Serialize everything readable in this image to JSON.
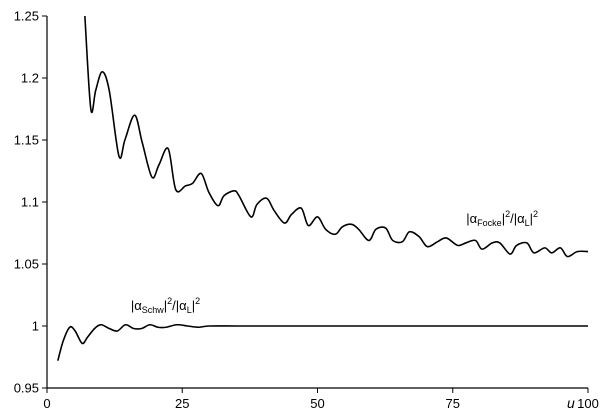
{
  "chart_data": {
    "type": "line",
    "title": "",
    "xlabel": "u",
    "ylabel": "",
    "xlim": [
      0,
      100
    ],
    "ylim": [
      0.95,
      1.25
    ],
    "grid": false,
    "x_ticks": [
      0,
      25,
      50,
      75,
      100
    ],
    "x_tick_labels": [
      "0",
      "25",
      "50",
      "75",
      "100"
    ],
    "y_ticks": [
      0.95,
      1,
      1.05,
      1.1,
      1.15,
      1.2,
      1.25
    ],
    "y_tick_labels": [
      "0.95",
      "1",
      "1.05",
      "1.1",
      "1.15",
      "1.2",
      "1.25"
    ],
    "series": [
      {
        "name": "focke",
        "x": [
          7,
          8.1,
          9,
          10.2,
          11.5,
          13.3,
          14.4,
          16.2,
          17.6,
          19.4,
          20.7,
          22.4,
          23.8,
          25.6,
          26.9,
          28.5,
          29.9,
          31.6,
          32.7,
          34.6,
          35.5,
          37.7,
          38.8,
          40.6,
          42,
          43.9,
          45.2,
          47,
          48.3,
          50,
          51.5,
          53.3,
          54.6,
          56.3,
          57.6,
          59.5,
          60.8,
          62.6,
          63.9,
          65.7,
          67,
          68.8,
          70.3,
          72.2,
          73.8,
          75.9,
          77.4,
          79.2,
          80.4,
          82.3,
          83.7,
          85.6,
          86.8,
          88.7,
          90,
          92,
          93.3,
          94.9,
          96.2,
          98,
          100
        ],
        "y": [
          1.25,
          1.175,
          1.19,
          1.205,
          1.19,
          1.137,
          1.15,
          1.17,
          1.148,
          1.12,
          1.13,
          1.143,
          1.11,
          1.113,
          1.115,
          1.123,
          1.108,
          1.097,
          1.105,
          1.109,
          1.105,
          1.088,
          1.098,
          1.103,
          1.093,
          1.083,
          1.09,
          1.095,
          1.081,
          1.088,
          1.078,
          1.074,
          1.08,
          1.082,
          1.078,
          1.069,
          1.078,
          1.079,
          1.069,
          1.068,
          1.076,
          1.072,
          1.064,
          1.068,
          1.071,
          1.065,
          1.067,
          1.069,
          1.062,
          1.067,
          1.067,
          1.058,
          1.065,
          1.067,
          1.059,
          1.063,
          1.059,
          1.063,
          1.056,
          1.06,
          1.06
        ]
      },
      {
        "name": "schw",
        "x": [
          2,
          3,
          4.2,
          5.2,
          6.5,
          7.5,
          8.8,
          10,
          11.5,
          13,
          14.5,
          16,
          17.5,
          19,
          20.5,
          22,
          24,
          26,
          28,
          30,
          35,
          40,
          50,
          60,
          70,
          80,
          90,
          100
        ],
        "y": [
          0.972,
          0.988,
          0.999,
          0.996,
          0.986,
          0.991,
          0.998,
          1.001,
          0.998,
          0.996,
          1.001,
          0.998,
          0.998,
          1.001,
          0.999,
          0.999,
          1.001,
          1.0,
          0.999,
          1.0,
          1.0,
          1.0,
          1.0,
          1.0,
          1.0,
          1.0,
          1.0,
          1.0
        ]
      }
    ],
    "annotations": [
      {
        "id": "focke",
        "prefix": "|α",
        "sub": "Focke",
        "mid": "|",
        "sup": "2",
        "slash": "/|α",
        "sub2": "L",
        "end": "|",
        "sup2": "2",
        "at_x": 77.5,
        "at_y": 1.083
      },
      {
        "id": "schw",
        "prefix": "|α",
        "sub": "Schw",
        "mid": "|",
        "sup": "2",
        "slash": "/|α",
        "sub2": "L",
        "end": "|",
        "sup2": "2",
        "at_x": 15.5,
        "at_y": 1.013
      }
    ]
  }
}
